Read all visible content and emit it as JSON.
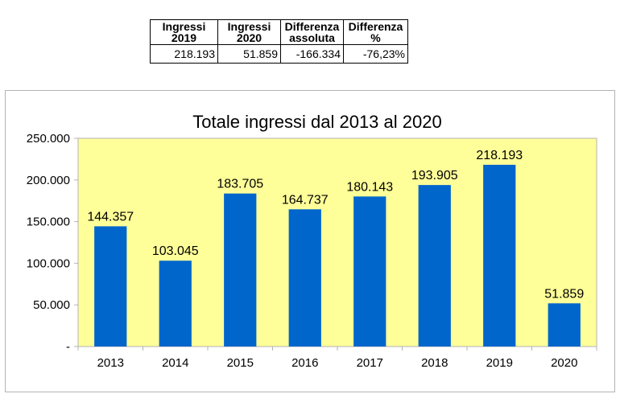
{
  "summary_table": {
    "headers": [
      [
        "Ingressi",
        "2019"
      ],
      [
        "Ingressi",
        "2020"
      ],
      [
        "Differenza",
        "assoluta"
      ],
      [
        "Differenza",
        "%"
      ]
    ],
    "values": [
      "218.193",
      "51.859",
      "-166.334",
      "-76,23%"
    ]
  },
  "chart_data": {
    "type": "bar",
    "title": "Totale ingressi dal 2013 al 2020",
    "categories": [
      "2013",
      "2014",
      "2015",
      "2016",
      "2017",
      "2018",
      "2019",
      "2020"
    ],
    "values": [
      144357,
      103045,
      183705,
      164737,
      180143,
      193905,
      218193,
      51859
    ],
    "value_labels": [
      "144.357",
      "103.045",
      "183.705",
      "164.737",
      "180.143",
      "193.905",
      "218.193",
      "51.859"
    ],
    "ylim": [
      0,
      250000
    ],
    "yticks": [
      0,
      50000,
      100000,
      150000,
      200000,
      250000
    ],
    "ytick_labels": [
      "-",
      "50.000",
      "100.000",
      "150.000",
      "200.000",
      "250.000"
    ],
    "grid": false,
    "colors": {
      "bar": "#0066cc",
      "plot_background": "#ffff99"
    }
  }
}
